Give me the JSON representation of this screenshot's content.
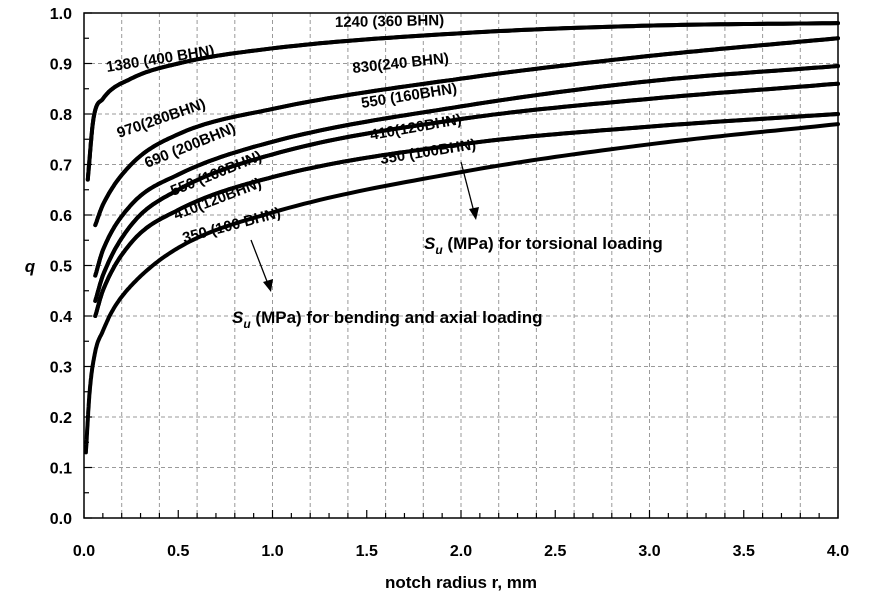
{
  "chart_data": {
    "type": "line",
    "title": "",
    "xlabel": "notch radius r, mm",
    "ylabel": "q",
    "xlim": [
      0,
      4
    ],
    "ylim": [
      0,
      1
    ],
    "grid": true,
    "x_ticks": [
      "0.0",
      "0.5",
      "1.0",
      "1.5",
      "2.0",
      "2.5",
      "3.0",
      "3.5",
      "4.0"
    ],
    "y_ticks": [
      "0.0",
      "0.1",
      "0.2",
      "0.3",
      "0.4",
      "0.5",
      "0.6",
      "0.7",
      "0.8",
      "0.9",
      "1.0"
    ],
    "series": [
      {
        "name": "1240 (360 BHN)",
        "group": "torsional",
        "x": [
          0.02,
          0.05,
          0.1,
          0.25,
          0.5,
          1.0,
          2.0,
          3.0,
          4.0
        ],
        "y": [
          0.67,
          0.79,
          0.83,
          0.87,
          0.9,
          0.93,
          0.96,
          0.975,
          0.98
        ]
      },
      {
        "name": "830(240 BHN)",
        "group": "torsional",
        "x": [
          0.06,
          0.1,
          0.25,
          0.5,
          1.0,
          2.0,
          3.0,
          4.0
        ],
        "y": [
          0.58,
          0.62,
          0.7,
          0.76,
          0.81,
          0.87,
          0.915,
          0.95
        ]
      },
      {
        "name": "550 (160BHN)",
        "group": "torsional",
        "x": [
          0.06,
          0.1,
          0.25,
          0.5,
          1.0,
          2.0,
          3.0,
          4.0
        ],
        "y": [
          0.48,
          0.53,
          0.62,
          0.68,
          0.745,
          0.815,
          0.865,
          0.895
        ]
      },
      {
        "name": "410(120BHN)",
        "group": "torsional",
        "x": [
          0.06,
          0.1,
          0.25,
          0.5,
          1.0,
          2.0,
          3.0,
          4.0
        ],
        "y": [
          0.43,
          0.48,
          0.58,
          0.65,
          0.72,
          0.79,
          0.83,
          0.86
        ]
      },
      {
        "name": "350 (100BHN)",
        "group": "torsional",
        "x": [
          0.06,
          0.1,
          0.25,
          0.5,
          1.0,
          2.0,
          3.0,
          4.0
        ],
        "y": [
          0.4,
          0.45,
          0.545,
          0.61,
          0.675,
          0.74,
          0.775,
          0.8
        ]
      },
      {
        "name": "1380 (400 BHN)",
        "group": "bending and axial",
        "x": [
          0.02,
          0.05,
          0.1,
          0.25,
          0.5,
          1.0,
          2.0,
          3.0,
          4.0
        ],
        "y": [
          0.67,
          0.79,
          0.83,
          0.87,
          0.9,
          0.93,
          0.96,
          0.975,
          0.98
        ]
      },
      {
        "name": "970(280BHN)",
        "group": "bending and axial",
        "x": [
          0.06,
          0.1,
          0.25,
          0.5,
          1.0,
          2.0,
          3.0,
          4.0
        ],
        "y": [
          0.58,
          0.62,
          0.7,
          0.76,
          0.81,
          0.87,
          0.915,
          0.95
        ]
      },
      {
        "name": "690 (200BHN)",
        "group": "bending and axial",
        "x": [
          0.06,
          0.1,
          0.25,
          0.5,
          1.0,
          2.0,
          3.0,
          4.0
        ],
        "y": [
          0.48,
          0.53,
          0.62,
          0.68,
          0.745,
          0.815,
          0.865,
          0.895
        ]
      },
      {
        "name": "550 (160BHN)",
        "group": "bending and axial",
        "x": [
          0.06,
          0.1,
          0.25,
          0.5,
          1.0,
          2.0,
          3.0,
          4.0
        ],
        "y": [
          0.43,
          0.48,
          0.58,
          0.65,
          0.72,
          0.79,
          0.83,
          0.86
        ]
      },
      {
        "name": "410(120BHN)",
        "group": "bending and axial",
        "x": [
          0.06,
          0.1,
          0.25,
          0.5,
          1.0,
          2.0,
          3.0,
          4.0
        ],
        "y": [
          0.4,
          0.45,
          0.545,
          0.61,
          0.675,
          0.74,
          0.775,
          0.8
        ]
      },
      {
        "name": "350 (100 BHN)",
        "group": "bending and axial",
        "x": [
          0.01,
          0.03,
          0.06,
          0.1,
          0.15,
          0.25,
          0.5,
          1.0,
          2.0,
          3.0,
          4.0
        ],
        "y": [
          0.13,
          0.25,
          0.33,
          0.37,
          0.41,
          0.46,
          0.535,
          0.605,
          0.685,
          0.74,
          0.78
        ]
      }
    ],
    "annotations": [
      {
        "text_main": "S",
        "text_sub": "u",
        "text_rest": " (MPa) for torsional loading"
      },
      {
        "text_main": "S",
        "text_sub": "u",
        "text_rest": " (MPa) for bending and axial loading"
      }
    ]
  }
}
